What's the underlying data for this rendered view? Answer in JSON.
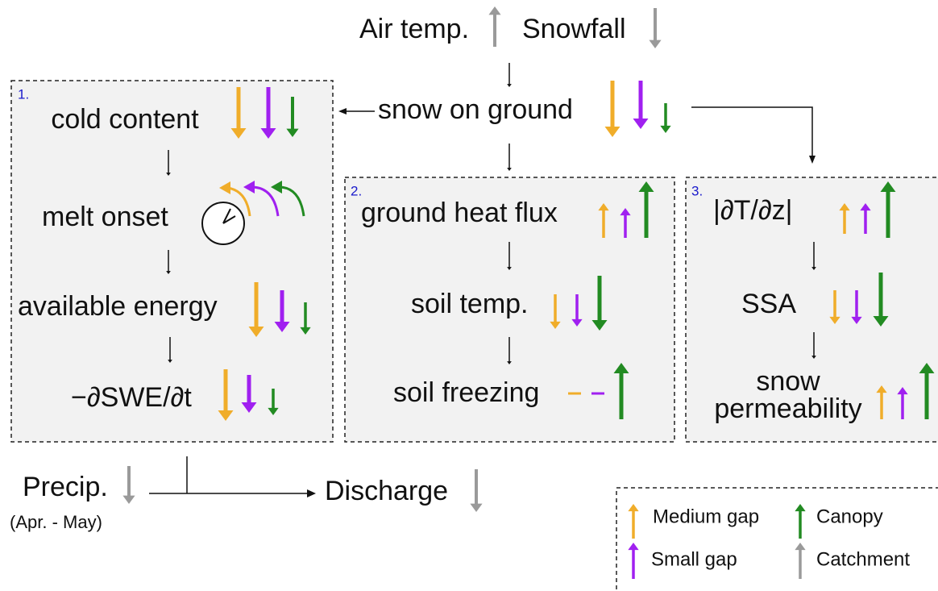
{
  "drivers": {
    "air_temp": "Air temp.",
    "snowfall": "Snowfall"
  },
  "snow_on_ground": "snow on ground",
  "boxes": [
    {
      "number": "1.",
      "items": [
        "cold content",
        "melt onset",
        "available energy",
        "−∂SWE/∂t"
      ]
    },
    {
      "number": "2.",
      "items": [
        "ground heat flux",
        "soil temp.",
        "soil freezing"
      ]
    },
    {
      "number": "3.",
      "items": [
        "|∂T/∂z|",
        "SSA",
        "snow permeability"
      ]
    }
  ],
  "precip": {
    "label": "Precip.",
    "period": "(Apr. - May)"
  },
  "discharge": "Discharge",
  "legend": [
    "Medium gap",
    "Canopy",
    "Small gap",
    "Catchment"
  ]
}
